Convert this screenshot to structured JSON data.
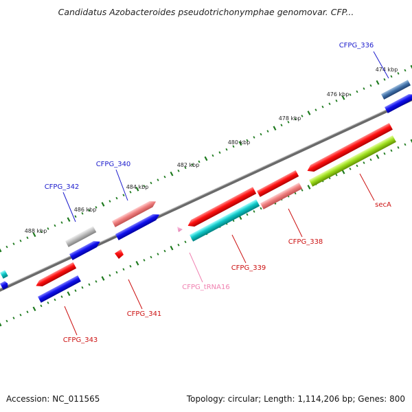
{
  "title": "Candidatus Azobacteroides pseudotrichonymphae genomovar. CFP...",
  "footer": {
    "accession": "Accession: NC_011565",
    "summary": "Topology: circular; Length: 1,114,206 bp; Genes: 800"
  },
  "colors": {
    "backbone": "#808080",
    "tick": "#1e7a1e",
    "forward_label": "#1a1acc",
    "reverse_label": "#cc1010",
    "trna_label": "#f080b0"
  },
  "scale_ticks": [
    "474 kbp",
    "476 kbp",
    "478 kbp",
    "480 kbp",
    "482 kbp",
    "484 kbp",
    "486 kbp",
    "488 kbp"
  ],
  "gene_labels": [
    {
      "id": "CFPG_336",
      "strand": "forward"
    },
    {
      "id": "CFPG_340",
      "strand": "forward"
    },
    {
      "id": "CFPG_342",
      "strand": "forward"
    },
    {
      "id": "secA",
      "strand": "reverse"
    },
    {
      "id": "CFPG_338",
      "strand": "reverse"
    },
    {
      "id": "CFPG_339",
      "strand": "reverse"
    },
    {
      "id": "CFPG_tRNA16",
      "strand": "trna"
    },
    {
      "id": "CFPG_341",
      "strand": "reverse"
    },
    {
      "id": "CFPG_343",
      "strand": "reverse"
    }
  ]
}
